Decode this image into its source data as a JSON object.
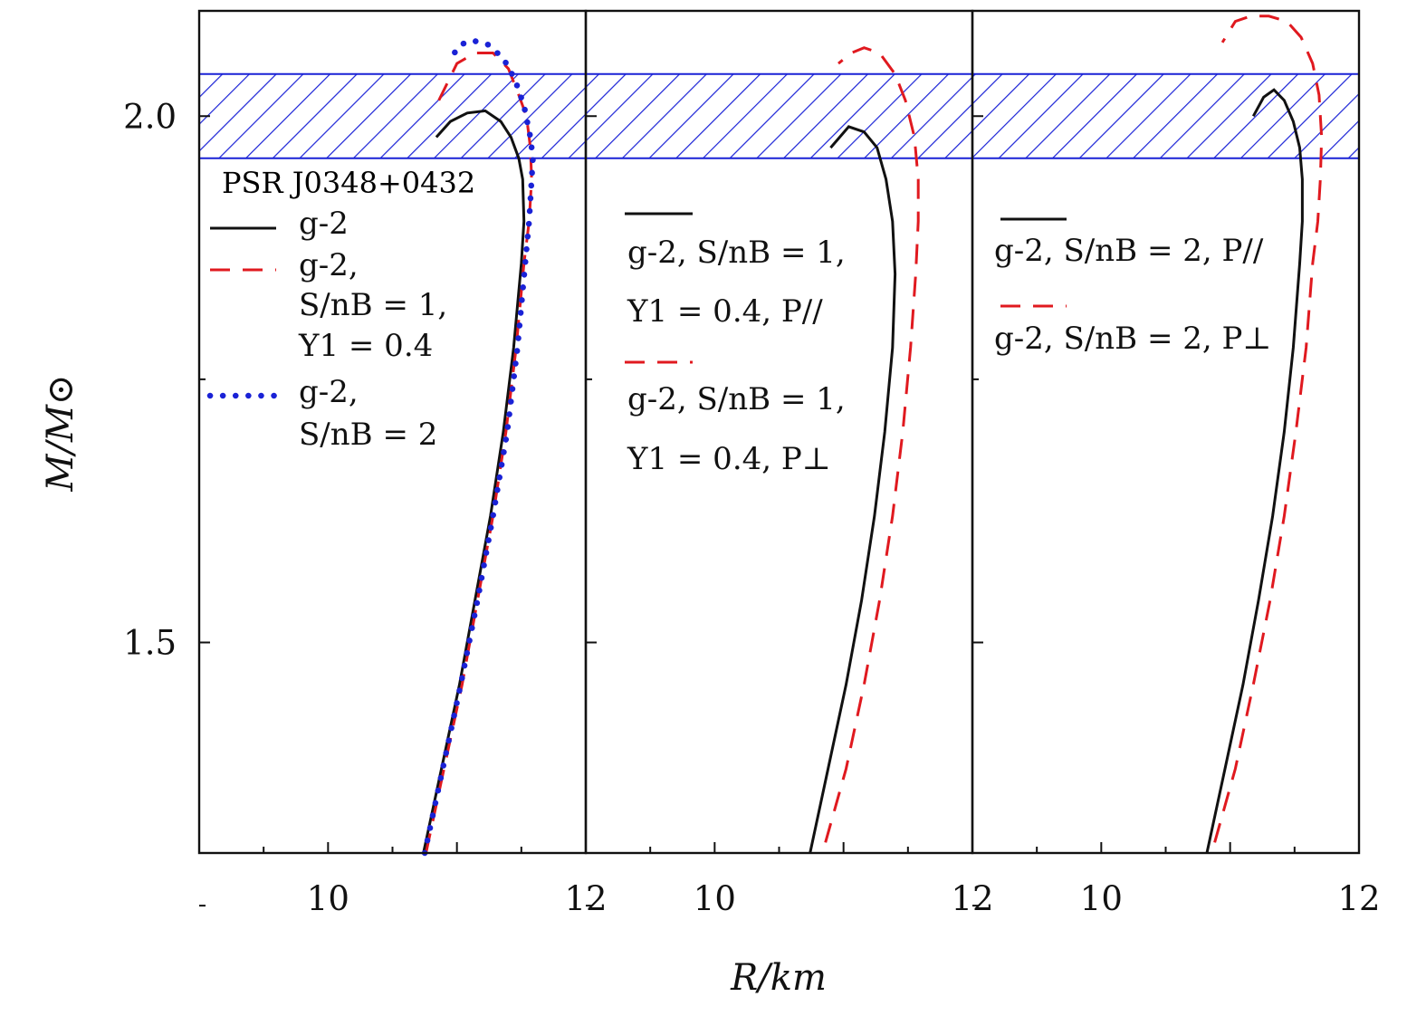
{
  "colors": {
    "solid": "#111111",
    "dashed": "#e0191f",
    "dotted": "#1a22d6",
    "band": "#1a22d6"
  },
  "figure": {
    "x_label": "R/km",
    "y_label": "M/M⊙",
    "band_label": "PSR J0348+0432"
  },
  "chart_data": [
    {
      "type": "line",
      "panel": "left",
      "xlim": [
        9,
        12
      ],
      "ylim": [
        1.3,
        2.1
      ],
      "x_ticks": [
        "10",
        "12"
      ],
      "y_ticks": [
        "2.0",
        "1.5"
      ],
      "band": {
        "label": "PSR J0348+0432",
        "y_range": [
          1.96,
          2.04
        ]
      },
      "legend": [
        {
          "series": "g-2",
          "style": "solid",
          "lines": [
            "g-2"
          ]
        },
        {
          "series": "g-2, S/nB=1, Y1=0.4",
          "style": "dashed",
          "lines": [
            "g-2,",
            "S/nB = 1,",
            "Y1 = 0.4"
          ]
        },
        {
          "series": "g-2, S/nB=2",
          "style": "dotted",
          "lines": [
            "g-2,",
            "S/nB = 2"
          ]
        }
      ],
      "series": [
        {
          "name": "g-2",
          "style": "solid",
          "x": [
            10.74,
            10.88,
            11.02,
            11.14,
            11.26,
            11.36,
            11.44,
            11.5,
            11.52,
            11.51,
            11.48,
            11.42,
            11.34,
            11.22,
            11.08,
            10.95,
            10.84
          ],
          "y": [
            1.3,
            1.38,
            1.46,
            1.54,
            1.62,
            1.7,
            1.78,
            1.86,
            1.9,
            1.94,
            1.96,
            1.98,
            1.995,
            2.005,
            2.003,
            1.995,
            1.98
          ]
        },
        {
          "name": "g-2, S/nB=1, Y1=0.4",
          "style": "dashed",
          "x": [
            10.76,
            10.9,
            11.04,
            11.16,
            11.28,
            11.38,
            11.46,
            11.52,
            11.56,
            11.58,
            11.57,
            11.54,
            11.48,
            11.4,
            11.28,
            11.14,
            11.0,
            10.86
          ],
          "y": [
            1.3,
            1.38,
            1.46,
            1.54,
            1.62,
            1.7,
            1.78,
            1.86,
            1.9,
            1.94,
            1.97,
            2.0,
            2.02,
            2.045,
            2.06,
            2.06,
            2.05,
            2.015
          ]
        },
        {
          "name": "g-2, S/nB=2",
          "style": "dotted",
          "x": [
            10.75,
            10.89,
            11.03,
            11.16,
            11.28,
            11.39,
            11.47,
            11.53,
            11.56,
            11.58,
            11.59,
            11.57,
            11.52,
            11.45,
            11.36,
            11.24,
            11.12,
            11.03,
            10.95
          ],
          "y": [
            1.3,
            1.38,
            1.46,
            1.54,
            1.62,
            1.7,
            1.78,
            1.86,
            1.9,
            1.94,
            1.96,
            1.98,
            2.01,
            2.035,
            2.055,
            2.068,
            2.072,
            2.068,
            2.055
          ]
        }
      ]
    },
    {
      "type": "line",
      "panel": "middle",
      "xlim": [
        9,
        12
      ],
      "ylim": [
        1.3,
        2.1
      ],
      "x_ticks": [
        "10",
        "12"
      ],
      "band": {
        "label": "",
        "y_range": [
          1.96,
          2.04
        ]
      },
      "legend": [
        {
          "series": "g-2, S/nB=1, Y1=0.4, P//",
          "style": "solid",
          "lines": [
            "g-2, S/nB = 1,",
            "Y1 = 0.4, P//"
          ]
        },
        {
          "series": "g-2, S/nB=1, Y1=0.4, P⊥",
          "style": "dashed",
          "lines": [
            "g-2, S/nB = 1,",
            "Y1 = 0.4, P⊥"
          ]
        }
      ],
      "series": [
        {
          "name": "g-2, S/nB=1, Y1=0.4, P//",
          "style": "solid",
          "x": [
            10.74,
            10.88,
            11.02,
            11.14,
            11.24,
            11.32,
            11.38,
            11.4,
            11.38,
            11.33,
            11.26,
            11.16,
            11.04,
            10.9
          ],
          "y": [
            1.3,
            1.38,
            1.46,
            1.54,
            1.62,
            1.7,
            1.78,
            1.85,
            1.9,
            1.94,
            1.97,
            1.985,
            1.99,
            1.97
          ]
        },
        {
          "name": "g-2, S/nB=1, Y1=0.4, P⊥",
          "style": "dashed",
          "x": [
            10.86,
            11.02,
            11.16,
            11.28,
            11.38,
            11.46,
            11.52,
            11.56,
            11.58,
            11.58,
            11.55,
            11.48,
            11.4,
            11.28,
            11.16,
            11.06,
            10.96
          ],
          "y": [
            1.31,
            1.38,
            1.46,
            1.54,
            1.62,
            1.7,
            1.78,
            1.85,
            1.9,
            1.94,
            1.98,
            2.015,
            2.04,
            2.06,
            2.065,
            2.06,
            2.05
          ]
        }
      ]
    },
    {
      "type": "line",
      "panel": "right",
      "xlim": [
        9,
        12
      ],
      "ylim": [
        1.3,
        2.1
      ],
      "x_ticks": [
        "10",
        "12"
      ],
      "band": {
        "label": "",
        "y_range": [
          1.96,
          2.04
        ]
      },
      "legend": [
        {
          "series": "g-2, S/nB=2, P//",
          "style": "solid",
          "lines": [
            "g-2, S/nB = 2, P//"
          ]
        },
        {
          "series": "g-2, S/nB=2, P⊥",
          "style": "dashed",
          "lines": [
            "g-2, S/nB = 2, P⊥"
          ]
        }
      ],
      "series": [
        {
          "name": "g-2, S/nB=2, P//",
          "style": "solid",
          "x": [
            10.82,
            10.96,
            11.1,
            11.22,
            11.33,
            11.42,
            11.49,
            11.54,
            11.56,
            11.56,
            11.54,
            11.49,
            11.42,
            11.34,
            11.26,
            11.18
          ],
          "y": [
            1.3,
            1.38,
            1.46,
            1.54,
            1.62,
            1.7,
            1.78,
            1.86,
            1.9,
            1.94,
            1.97,
            1.995,
            2.015,
            2.025,
            2.018,
            2.0
          ]
        },
        {
          "name": "g-2, S/nB=2, P⊥",
          "style": "dashed",
          "x": [
            10.88,
            11.04,
            11.18,
            11.31,
            11.42,
            11.51,
            11.59,
            11.64,
            11.68,
            11.7,
            11.71,
            11.69,
            11.64,
            11.55,
            11.44,
            11.3,
            11.16,
            11.04,
            10.94
          ],
          "y": [
            1.31,
            1.38,
            1.46,
            1.54,
            1.62,
            1.7,
            1.78,
            1.86,
            1.9,
            1.94,
            1.98,
            2.02,
            2.05,
            2.075,
            2.09,
            2.095,
            2.095,
            2.09,
            2.07
          ]
        }
      ]
    }
  ]
}
